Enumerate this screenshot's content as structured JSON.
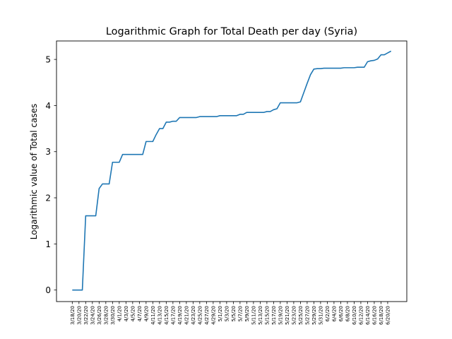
{
  "chart_data": {
    "type": "line",
    "title": "Logarithmic Graph for Total Death per day (Syria)",
    "xlabel": "",
    "ylabel": "Logarithmic value of Total cases",
    "ylim": [
      -0.25,
      5.4
    ],
    "yticks": [
      0,
      1,
      2,
      3,
      4,
      5
    ],
    "grid": false,
    "legend": "none",
    "line_color": "#1f77b4",
    "x_start": "3/18/20",
    "x_label_step": 2,
    "series": [
      {
        "values": [
          0,
          0,
          0,
          0,
          1.61,
          1.61,
          1.61,
          1.61,
          2.2,
          2.3,
          2.3,
          2.3,
          2.77,
          2.77,
          2.77,
          2.94,
          2.94,
          2.94,
          2.94,
          2.94,
          2.94,
          2.94,
          3.22,
          3.22,
          3.22,
          3.37,
          3.5,
          3.5,
          3.64,
          3.64,
          3.66,
          3.66,
          3.74,
          3.74,
          3.74,
          3.74,
          3.74,
          3.74,
          3.76,
          3.76,
          3.76,
          3.76,
          3.76,
          3.76,
          3.78,
          3.78,
          3.78,
          3.78,
          3.78,
          3.78,
          3.81,
          3.81,
          3.85,
          3.85,
          3.85,
          3.85,
          3.85,
          3.85,
          3.87,
          3.87,
          3.91,
          3.93,
          4.06,
          4.06,
          4.06,
          4.06,
          4.06,
          4.06,
          4.08,
          4.28,
          4.48,
          4.67,
          4.79,
          4.8,
          4.8,
          4.81,
          4.81,
          4.81,
          4.81,
          4.81,
          4.81,
          4.82,
          4.82,
          4.82,
          4.82,
          4.83,
          4.83,
          4.83,
          4.95,
          4.97,
          4.98,
          5.01,
          5.1,
          5.1,
          5.14,
          5.18
        ]
      }
    ]
  }
}
